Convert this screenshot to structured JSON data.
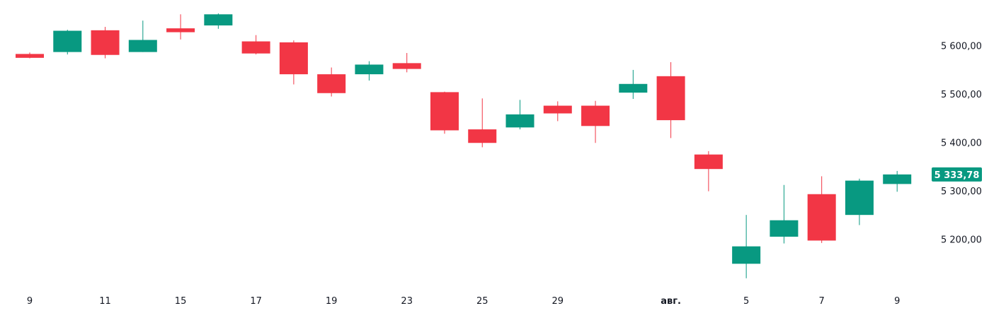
{
  "chart_data": {
    "type": "candlestick",
    "colors": {
      "up": "#089981",
      "down": "#F23645",
      "text": "#131722",
      "background": "#FFFFFF"
    },
    "y_axis": {
      "position": "right",
      "range": [
        5107,
        5680
      ],
      "ticks": [
        {
          "value": 5600,
          "label": "5 600,00"
        },
        {
          "value": 5500,
          "label": "5 500,00"
        },
        {
          "value": 5400,
          "label": "5 400,00"
        },
        {
          "value": 5300,
          "label": "5 300,00"
        },
        {
          "value": 5200,
          "label": "5 200,00"
        }
      ]
    },
    "x_axis": {
      "labels": [
        {
          "index": 0,
          "label": "9"
        },
        {
          "index": 2,
          "label": "11"
        },
        {
          "index": 4,
          "label": "15"
        },
        {
          "index": 6,
          "label": "17"
        },
        {
          "index": 8,
          "label": "19"
        },
        {
          "index": 10,
          "label": "23"
        },
        {
          "index": 12,
          "label": "25"
        },
        {
          "index": 14,
          "label": "29"
        },
        {
          "index": 17,
          "label": "авг.",
          "bold": true
        },
        {
          "index": 19,
          "label": "5"
        },
        {
          "index": 21,
          "label": "7"
        },
        {
          "index": 23,
          "label": "9"
        }
      ]
    },
    "last_price": {
      "value": 5333.78,
      "label": "5 333,78"
    },
    "candles": [
      {
        "o": 5583,
        "h": 5586,
        "l": 5574,
        "c": 5575
      },
      {
        "o": 5587,
        "h": 5633,
        "l": 5582,
        "c": 5631
      },
      {
        "o": 5632,
        "h": 5639,
        "l": 5574,
        "c": 5581
      },
      {
        "o": 5587,
        "h": 5652,
        "l": 5587,
        "c": 5612
      },
      {
        "o": 5636,
        "h": 5665,
        "l": 5613,
        "c": 5628
      },
      {
        "o": 5642,
        "h": 5667,
        "l": 5635,
        "c": 5665
      },
      {
        "o": 5609,
        "h": 5622,
        "l": 5582,
        "c": 5584
      },
      {
        "o": 5607,
        "h": 5611,
        "l": 5520,
        "c": 5541
      },
      {
        "o": 5541,
        "h": 5555,
        "l": 5495,
        "c": 5502
      },
      {
        "o": 5541,
        "h": 5568,
        "l": 5528,
        "c": 5561
      },
      {
        "o": 5564,
        "h": 5585,
        "l": 5545,
        "c": 5552
      },
      {
        "o": 5504,
        "h": 5505,
        "l": 5418,
        "c": 5425
      },
      {
        "o": 5427,
        "h": 5491,
        "l": 5390,
        "c": 5399
      },
      {
        "o": 5431,
        "h": 5488,
        "l": 5427,
        "c": 5458
      },
      {
        "o": 5476,
        "h": 5485,
        "l": 5444,
        "c": 5460
      },
      {
        "o": 5476,
        "h": 5486,
        "l": 5399,
        "c": 5434
      },
      {
        "o": 5503,
        "h": 5550,
        "l": 5490,
        "c": 5521
      },
      {
        "o": 5537,
        "h": 5566,
        "l": 5409,
        "c": 5446
      },
      {
        "o": 5375,
        "h": 5382,
        "l": 5299,
        "c": 5345
      },
      {
        "o": 5149,
        "h": 5250,
        "l": 5119,
        "c": 5185
      },
      {
        "o": 5205,
        "h": 5312,
        "l": 5191,
        "c": 5239
      },
      {
        "o": 5293,
        "h": 5330,
        "l": 5192,
        "c": 5197
      },
      {
        "o": 5250,
        "h": 5325,
        "l": 5229,
        "c": 5321
      },
      {
        "o": 5314,
        "h": 5341,
        "l": 5298,
        "c": 5333.78
      }
    ]
  }
}
